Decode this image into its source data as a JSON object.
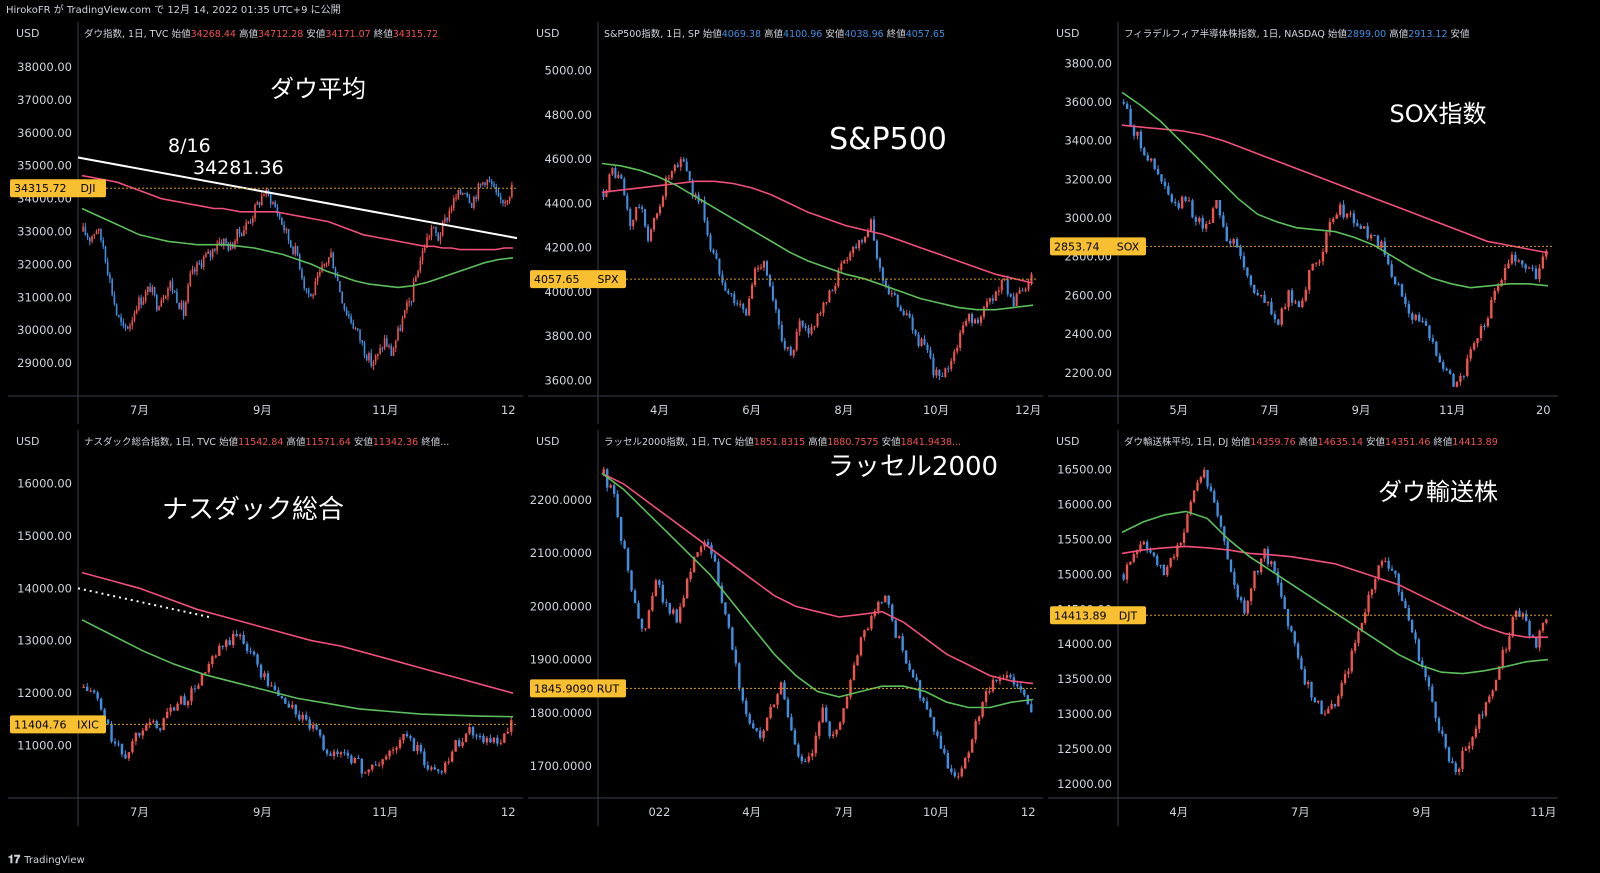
{
  "header": {
    "text": "HirokoFR が TradingView.com で 12月 14, 2022 01:35 UTC+9 に公開"
  },
  "footer": {
    "logo": "𝟏𝟕",
    "brand": "TradingView"
  },
  "colors": {
    "up": "#ef5350",
    "down": "#3f8fe0",
    "ma_pink": "#f0507a",
    "ma_green": "#5cbf5c",
    "axis_text": "#d1d4dc",
    "price_tag": "#f8c030",
    "grid_border": "#3a3e48"
  },
  "chart_data": [
    {
      "type": "candlestick",
      "currency": "USD",
      "legend": {
        "name": "ダウ指数, 1日, TVC",
        "o_label": "始値",
        "o": "34268.44",
        "h_label": "高値",
        "h": "34712.28",
        "l_label": "安値",
        "l": "34171.07",
        "c_label": "終値",
        "c": "34315.72"
      },
      "overlay_title": "ダウ平均",
      "annotations": [
        "8/16",
        "34281.36"
      ],
      "y_ticks": [
        "38000.00",
        "37000.00",
        "36000.00",
        "35000.00",
        "34000.00",
        "33000.00",
        "32000.00",
        "31000.00",
        "30000.00",
        "29000.00"
      ],
      "y_tick_values": [
        38000,
        37000,
        36000,
        35000,
        34000,
        33000,
        32000,
        31000,
        30000,
        29000
      ],
      "x_ticks": [
        "7月",
        "9月",
        "11月",
        "12"
      ],
      "price": {
        "label": "34315.72",
        "symbol": "DJI",
        "value": 34315.72
      },
      "ylim": [
        28000,
        38700
      ],
      "candles": [
        33000,
        32800,
        33100,
        32600,
        31500,
        30500,
        30000,
        30200,
        30800,
        31000,
        31300,
        30800,
        31100,
        31400,
        31000,
        30500,
        31600,
        31900,
        32200,
        32300,
        32700,
        32700,
        32500,
        32900,
        33100,
        33400,
        33800,
        34200,
        34000,
        33600,
        33100,
        32600,
        32300,
        31400,
        31000,
        31500,
        32000,
        32300,
        31500,
        30700,
        30300,
        29900,
        29400,
        29000,
        29200,
        29700,
        29300,
        29900,
        30500,
        31000,
        31900,
        32600,
        33100,
        32800,
        33300,
        33800,
        34100,
        34300,
        33900,
        34300,
        34600,
        34400,
        33900,
        34000,
        34320
      ],
      "ma_pink": [
        34700,
        34650,
        34600,
        34550,
        34500,
        34400,
        34300,
        34200,
        34100,
        34000,
        33950,
        33900,
        33850,
        33800,
        33750,
        33700,
        33700,
        33650,
        33600,
        33600,
        33600,
        33600,
        33600,
        33550,
        33500,
        33450,
        33400,
        33350,
        33300,
        33200,
        33100,
        33000,
        32900,
        32850,
        32800,
        32750,
        32700,
        32650,
        32600,
        32550,
        32550,
        32500,
        32500,
        32450,
        32450,
        32450,
        32450,
        32450,
        32500,
        32500
      ],
      "ma_green": [
        33700,
        33500,
        33300,
        33100,
        32900,
        32800,
        32700,
        32650,
        32600,
        32600,
        32600,
        32550,
        32500,
        32400,
        32300,
        32150,
        32000,
        31800,
        31650,
        31500,
        31400,
        31350,
        31300,
        31350,
        31450,
        31600,
        31750,
        31900,
        32050,
        32150,
        32200
      ],
      "trend": [
        [
          0,
          35250
        ],
        [
          1,
          32800
        ]
      ],
      "ref_line": 34315.72
    },
    {
      "type": "candlestick",
      "currency": "USD",
      "legend": {
        "name": "S&P500指数, 1日, SP",
        "o_label": "始値",
        "o": "4069.38",
        "h_label": "高値",
        "h": "4100.96",
        "l_label": "安値",
        "l": "4038.96",
        "c_label": "終値",
        "c": "4057.65"
      },
      "overlay_title": "S&P500",
      "annotations": [],
      "y_ticks": [
        "5000.00",
        "4800.00",
        "4600.00",
        "4400.00",
        "4200.00",
        "4000.00",
        "3800.00",
        "3600.00"
      ],
      "y_tick_values": [
        5000,
        4800,
        4600,
        4400,
        4200,
        4000,
        3800,
        3600
      ],
      "x_ticks": [
        "4月",
        "6月",
        "8月",
        "10月",
        "12月"
      ],
      "price": {
        "label": "4057.65",
        "symbol": "SPX",
        "value": 4057.65
      },
      "ylim": [
        3530,
        5120
      ],
      "candles": [
        4450,
        4550,
        4500,
        4300,
        4400,
        4250,
        4350,
        4500,
        4550,
        4600,
        4450,
        4400,
        4200,
        4100,
        4000,
        3950,
        3900,
        4100,
        4150,
        3950,
        3800,
        3700,
        3850,
        3800,
        3900,
        3950,
        4050,
        4150,
        4200,
        4250,
        4300,
        4100,
        4000,
        3950,
        3900,
        3800,
        3750,
        3650,
        3600,
        3700,
        3800,
        3900,
        3850,
        3950,
        4000,
        4050,
        3950,
        4000,
        4057
      ],
      "ma_pink": [
        4450,
        4460,
        4470,
        4480,
        4490,
        4500,
        4500,
        4490,
        4470,
        4440,
        4400,
        4360,
        4330,
        4300,
        4280,
        4260,
        4230,
        4200,
        4170,
        4140,
        4110,
        4080,
        4060,
        4040
      ],
      "ma_green": [
        4580,
        4570,
        4550,
        4520,
        4480,
        4430,
        4380,
        4330,
        4280,
        4230,
        4180,
        4140,
        4110,
        4080,
        4060,
        4030,
        4000,
        3970,
        3950,
        3930,
        3920,
        3920,
        3930,
        3940
      ],
      "trend": [],
      "ref_line": 4057.65
    },
    {
      "type": "candlestick",
      "currency": "USD",
      "legend": {
        "name": "フィラデルフィア半導体株指数, 1日, NASDAQ",
        "o_label": "始値",
        "o": "2899.00",
        "h_label": "高値",
        "h": "2913.12",
        "l_label": "安値",
        "l": "",
        "c_label": "",
        "c": ""
      },
      "overlay_title": "SOX指数",
      "annotations": [],
      "y_ticks": [
        "3800.00",
        "3600.00",
        "3400.00",
        "3200.00",
        "3000.00",
        "2800.00",
        "2600.00",
        "2400.00",
        "2200.00"
      ],
      "y_tick_values": [
        3800,
        3600,
        3400,
        3200,
        3000,
        2800,
        2600,
        2400,
        2200
      ],
      "x_ticks": [
        "5月",
        "7月",
        "9月",
        "11月",
        "20"
      ],
      "price": {
        "label": "2853.74",
        "symbol": "SOX",
        "value": 2853.74
      },
      "ylim": [
        2080,
        3900
      ],
      "candles": [
        3600,
        3450,
        3350,
        3250,
        3150,
        3050,
        3100,
        3000,
        2950,
        3100,
        2900,
        2850,
        2700,
        2600,
        2550,
        2450,
        2600,
        2550,
        2700,
        2800,
        2950,
        3050,
        3000,
        2950,
        2900,
        2850,
        2700,
        2600,
        2500,
        2450,
        2350,
        2250,
        2150,
        2200,
        2350,
        2450,
        2600,
        2750,
        2800,
        2750,
        2700,
        2850
      ],
      "ma_pink": [
        3480,
        3470,
        3460,
        3450,
        3430,
        3400,
        3360,
        3320,
        3280,
        3240,
        3200,
        3160,
        3120,
        3080,
        3040,
        3000,
        2960,
        2920,
        2880,
        2860,
        2840,
        2820
      ],
      "ma_green": [
        3650,
        3580,
        3500,
        3400,
        3300,
        3200,
        3100,
        3020,
        2980,
        2950,
        2940,
        2930,
        2900,
        2860,
        2800,
        2740,
        2690,
        2660,
        2640,
        2650,
        2660,
        2660,
        2650
      ],
      "trend": [],
      "ref_line": 2853.74
    },
    {
      "type": "candlestick",
      "currency": "USD",
      "legend": {
        "name": "ナスダック総合指数, 1日, TVC",
        "o_label": "始値",
        "o": "11542.84",
        "h_label": "高値",
        "h": "11571.64",
        "l_label": "安値",
        "l": "11342.36",
        "c_label": "終値...",
        "c": ""
      },
      "overlay_title": "ナスダック総合",
      "annotations": [],
      "y_ticks": [
        "16000.00",
        "15000.00",
        "14000.00",
        "13000.00",
        "12000.00",
        "11000.00"
      ],
      "y_tick_values": [
        16000,
        15000,
        14000,
        13000,
        12000,
        11000
      ],
      "x_ticks": [
        "7月",
        "9月",
        "11月",
        "12"
      ],
      "price": {
        "label": "11404.76",
        "symbol": "IXIC",
        "value": 11404.76
      },
      "ylim": [
        10000,
        16600
      ],
      "candles": [
        12100,
        12000,
        11500,
        11000,
        10800,
        11200,
        11500,
        11300,
        11600,
        11800,
        11900,
        12200,
        12500,
        12800,
        13000,
        13100,
        12800,
        12400,
        12100,
        11900,
        11700,
        11500,
        11300,
        11000,
        10800,
        10900,
        10700,
        10500,
        10600,
        10800,
        11000,
        11200,
        10900,
        10600,
        10500,
        10800,
        11100,
        11300,
        11200,
        11100,
        11000,
        11400
      ],
      "ma_pink": [
        14300,
        14150,
        14000,
        13800,
        13600,
        13450,
        13300,
        13150,
        13000,
        12900,
        12750,
        12600,
        12450,
        12300,
        12150,
        12000
      ],
      "ma_green": [
        13400,
        13100,
        12800,
        12550,
        12350,
        12200,
        12050,
        11900,
        11800,
        11700,
        11650,
        11600,
        11580,
        11560,
        11550
      ],
      "trend_dotted": [
        [
          0,
          14000
        ],
        [
          0.3,
          13450
        ]
      ],
      "ref_line": 11404.76
    },
    {
      "type": "candlestick",
      "currency": "USD",
      "legend": {
        "name": "ラッセル2000指数, 1日, TVC",
        "o_label": "始値",
        "o": "1851.8315",
        "h_label": "高値",
        "h": "1880.7575",
        "l_label": "安値",
        "l": "1841.9438...",
        "c_label": "",
        "c": ""
      },
      "overlay_title": "ラッセル2000",
      "annotations": [],
      "y_ticks": [
        "2200.0000",
        "2100.0000",
        "2000.0000",
        "1900.0000",
        "1800.0000",
        "1700.0000"
      ],
      "y_tick_values": [
        2200,
        2100,
        2000,
        1900,
        1800,
        1700
      ],
      "x_ticks": [
        "022",
        "4月",
        "7月",
        "10月",
        "12"
      ],
      "price": {
        "label": "1845.9090",
        "symbol": "RUT",
        "value": 1845.909
      },
      "ylim": [
        1640,
        2290
      ],
      "candles": [
        2250,
        2200,
        2100,
        2000,
        1950,
        2050,
        2000,
        1980,
        2050,
        2100,
        2120,
        2050,
        1950,
        1850,
        1780,
        1750,
        1800,
        1850,
        1770,
        1700,
        1720,
        1800,
        1750,
        1800,
        1900,
        1950,
        2000,
        2020,
        1950,
        1900,
        1850,
        1800,
        1750,
        1700,
        1680,
        1720,
        1800,
        1850,
        1860,
        1870,
        1850,
        1800
      ],
      "ma_pink": [
        2250,
        2230,
        2200,
        2170,
        2140,
        2110,
        2080,
        2050,
        2020,
        2000,
        1990,
        1980,
        1985,
        1990,
        1970,
        1940,
        1910,
        1890,
        1870,
        1860,
        1855
      ],
      "ma_green": [
        2250,
        2220,
        2180,
        2140,
        2100,
        2060,
        2010,
        1960,
        1910,
        1870,
        1840,
        1830,
        1840,
        1850,
        1850,
        1840,
        1820,
        1810,
        1810,
        1820,
        1825
      ],
      "trend": [],
      "ref_line": 1845.909
    },
    {
      "type": "candlestick",
      "currency": "USD",
      "legend": {
        "name": "ダウ輸送株平均, 1日, DJ",
        "o_label": "始値",
        "o": "14359.76",
        "h_label": "高値",
        "h": "14635.14",
        "l_label": "安値",
        "l": "14351.46",
        "c_label": "終値",
        "c": "14413.89"
      },
      "overlay_title": "ダウ輸送株",
      "annotations": [],
      "y_ticks": [
        "16500.00",
        "16000.00",
        "15500.00",
        "15000.00",
        "14500.00",
        "14000.00",
        "13500.00",
        "13000.00",
        "12500.00",
        "12000.00"
      ],
      "y_tick_values": [
        16500,
        16000,
        15500,
        15000,
        14500,
        14000,
        13500,
        13000,
        12500,
        12000
      ],
      "x_ticks": [
        "4月",
        "7月",
        "9月",
        "11月"
      ],
      "price": {
        "label": "14413.89",
        "symbol": "DJT",
        "value": 14413.89
      },
      "ylim": [
        11800,
        16750
      ],
      "candles": [
        15000,
        15300,
        15500,
        15200,
        15000,
        15300,
        15600,
        16200,
        16500,
        16000,
        15500,
        14800,
        14500,
        15000,
        15300,
        15000,
        14500,
        14000,
        13500,
        13200,
        13000,
        13200,
        13500,
        14000,
        14500,
        15000,
        15200,
        15000,
        14500,
        14000,
        13500,
        13000,
        12500,
        12200,
        12500,
        12800,
        13200,
        13500,
        14000,
        14500,
        14300,
        14000,
        14400
      ],
      "ma_pink": [
        15300,
        15350,
        15380,
        15400,
        15380,
        15350,
        15300,
        15280,
        15250,
        15200,
        15150,
        15050,
        14950,
        14850,
        14700,
        14550,
        14400,
        14250,
        14150,
        14100,
        14100
      ],
      "ma_green": [
        15600,
        15750,
        15850,
        15900,
        15800,
        15500,
        15250,
        15050,
        14850,
        14650,
        14450,
        14250,
        14050,
        13850,
        13700,
        13600,
        13580,
        13620,
        13680,
        13750,
        13780
      ],
      "trend": [],
      "ref_line": 14413.89
    }
  ]
}
